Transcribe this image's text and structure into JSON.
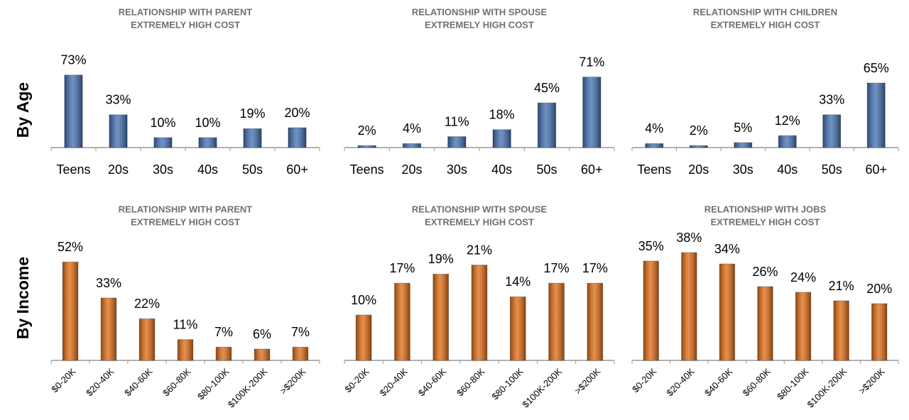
{
  "row_labels": [
    "By Age",
    "By Income"
  ],
  "chart_data": [
    {
      "type": "bar",
      "title": "RELATIONSHIP WITH PARENT",
      "subtitle": "EXTREMELY HIGH COST",
      "categories": [
        "Teens",
        "20s",
        "30s",
        "40s",
        "50s",
        "60+"
      ],
      "values": [
        73,
        33,
        10,
        10,
        19,
        20
      ],
      "value_labels": [
        "73%",
        "33%",
        "10%",
        "10%",
        "19%",
        "20%"
      ],
      "color": "#3f6eb0",
      "ylim": [
        0,
        100
      ]
    },
    {
      "type": "bar",
      "title": "RELATIONSHIP WITH SPOUSE",
      "subtitle": "EXTREMELY HIGH COST",
      "categories": [
        "Teens",
        "20s",
        "30s",
        "40s",
        "50s",
        "60+"
      ],
      "values": [
        2,
        4,
        11,
        18,
        45,
        71
      ],
      "value_labels": [
        "2%",
        "4%",
        "11%",
        "18%",
        "45%",
        "71%"
      ],
      "color": "#3f6eb0",
      "ylim": [
        0,
        100
      ]
    },
    {
      "type": "bar",
      "title": "RELATIONSHIP WITH CHILDREN",
      "subtitle": "EXTREMELY HIGH COST",
      "categories": [
        "Teens",
        "20s",
        "30s",
        "40s",
        "50s",
        "60+"
      ],
      "values": [
        4,
        2,
        5,
        12,
        33,
        65
      ],
      "value_labels": [
        "4%",
        "2%",
        "5%",
        "12%",
        "33%",
        "65%"
      ],
      "color": "#3f6eb0",
      "ylim": [
        0,
        100
      ]
    },
    {
      "type": "bar",
      "title": "RELATIONSHIP WITH PARENT",
      "subtitle": "EXTREMELY HIGH COST",
      "categories": [
        "$0-20K",
        "$20-40K",
        "$40-60K",
        "$60-80K",
        "$80-100K",
        "$100K-200K",
        ">$200K"
      ],
      "values": [
        52,
        33,
        22,
        11,
        7,
        6,
        7
      ],
      "value_labels": [
        "52%",
        "33%",
        "22%",
        "11%",
        "7%",
        "6%",
        "7%"
      ],
      "color": "#e0690f",
      "ylim": [
        0,
        60
      ]
    },
    {
      "type": "bar",
      "title": "RELATIONSHIP WITH SPOUSE",
      "subtitle": "EXTREMELY HIGH COST",
      "categories": [
        "$0-20K",
        "$20-40K",
        "$40-60K",
        "$60-80K",
        "$80-100K",
        "$100K-200K",
        ">$200K"
      ],
      "values": [
        10,
        17,
        19,
        21,
        14,
        17,
        17
      ],
      "value_labels": [
        "10%",
        "17%",
        "19%",
        "21%",
        "14%",
        "17%",
        "17%"
      ],
      "color": "#e0690f",
      "ylim": [
        0,
        25
      ]
    },
    {
      "type": "bar",
      "title": "RELATIONSHIP WITH JOBS",
      "subtitle": "EXTREMELY HIGH COST",
      "categories": [
        "$0-20K",
        "$20-40K",
        "$40-60K",
        "$60-80K",
        "$80-100K",
        "$100K-200K",
        ">$200K"
      ],
      "values": [
        35,
        38,
        34,
        26,
        24,
        21,
        20
      ],
      "value_labels": [
        "35%",
        "38%",
        "34%",
        "26%",
        "24%",
        "21%",
        "20%"
      ],
      "color": "#e0690f",
      "ylim": [
        0,
        40
      ]
    }
  ]
}
